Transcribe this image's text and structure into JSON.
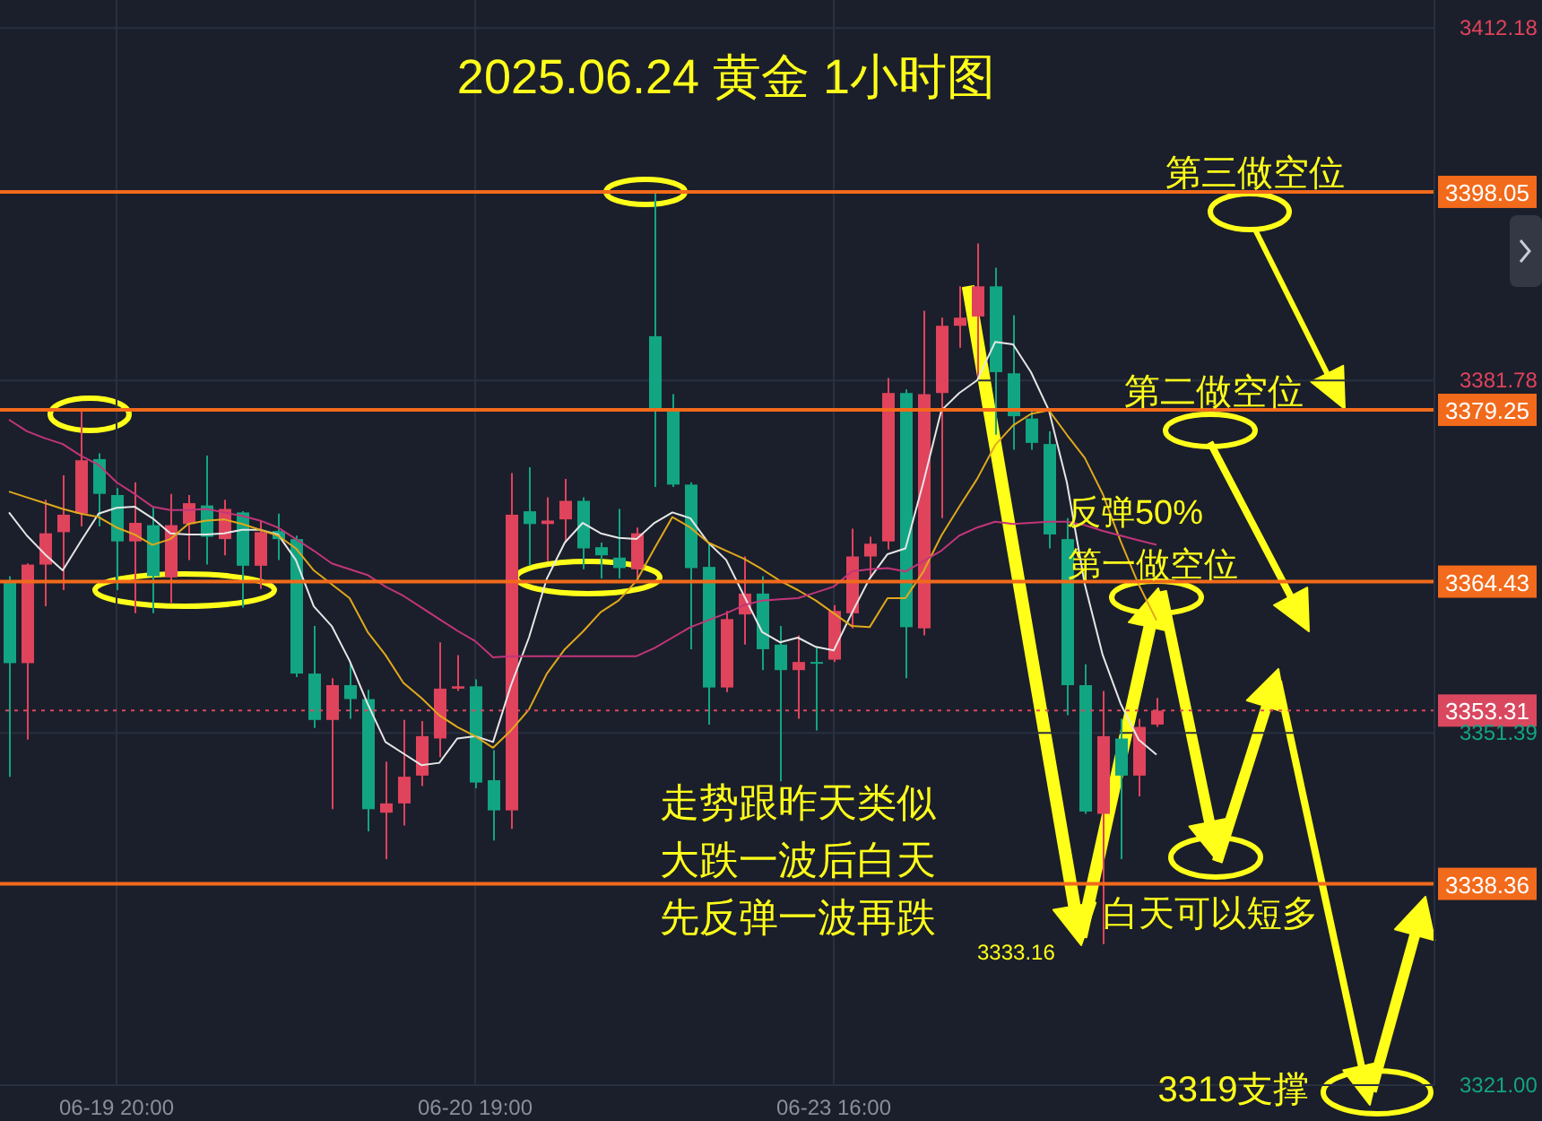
{
  "chart_data": {
    "type": "candlestick",
    "title": "2025.06.24 黄金 1小时图",
    "categories": [
      null,
      null,
      null,
      null,
      null,
      null,
      "06-19 20:00",
      null,
      null,
      null,
      null,
      null,
      null,
      null,
      null,
      null,
      null,
      null,
      null,
      null,
      null,
      null,
      null,
      null,
      null,
      null,
      "06-20 19:00",
      null,
      null,
      null,
      null,
      null,
      null,
      null,
      null,
      null,
      null,
      null,
      null,
      null,
      null,
      null,
      null,
      null,
      null,
      null,
      "06-23 16:00",
      null,
      null,
      null,
      null,
      null,
      null,
      null,
      null,
      null,
      null,
      null,
      null,
      null,
      null,
      null,
      null,
      null,
      null,
      null,
      null,
      null,
      null,
      null,
      null,
      null,
      null,
      null,
      null,
      null,
      null,
      null,
      null,
      null
    ],
    "ohlc": [
      [
        3364.5,
        3364.9,
        3347.6,
        3357.4
      ],
      [
        3357.4,
        3366.0,
        3350.8,
        3365.9
      ],
      [
        3365.9,
        3371.5,
        3362.3,
        3368.6
      ],
      [
        3368.7,
        3373.6,
        3363.7,
        3370.2
      ],
      [
        3370.3,
        3379.2,
        3369.2,
        3374.9
      ],
      [
        3375.0,
        3375.5,
        3369.2,
        3372.0
      ],
      [
        3371.9,
        3372.5,
        3363.7,
        3367.9
      ],
      [
        3367.9,
        3373.0,
        3361.7,
        3369.5
      ],
      [
        3369.3,
        3370.8,
        3361.7,
        3364.9
      ],
      [
        3364.8,
        3372.0,
        3362.6,
        3369.3
      ],
      [
        3369.4,
        3371.9,
        3366.3,
        3371.2
      ],
      [
        3371.0,
        3375.3,
        3365.9,
        3368.3
      ],
      [
        3368.1,
        3371.5,
        3366.7,
        3370.7
      ],
      [
        3370.4,
        3370.5,
        3362.2,
        3365.8
      ],
      [
        3365.8,
        3369.7,
        3363.8,
        3368.7
      ],
      [
        3368.8,
        3370.3,
        3366.3,
        3368.1
      ],
      [
        3368.1,
        3368.4,
        3356.2,
        3356.5
      ],
      [
        3356.5,
        3360.6,
        3351.8,
        3352.5
      ],
      [
        3352.5,
        3356.1,
        3344.8,
        3355.5
      ],
      [
        3355.5,
        3357.5,
        3352.6,
        3354.3
      ],
      [
        3354.3,
        3355.1,
        3342.9,
        3344.8
      ],
      [
        3344.5,
        3348.9,
        3340.5,
        3345.3
      ],
      [
        3345.3,
        3352.5,
        3343.4,
        3347.6
      ],
      [
        3347.7,
        3352.4,
        3346.8,
        3351.1
      ],
      [
        3350.9,
        3359.2,
        3349.3,
        3355.2
      ],
      [
        3355.2,
        3358.1,
        3355.0,
        3355.4
      ],
      [
        3355.4,
        3356.0,
        3346.6,
        3347.1
      ],
      [
        3347.3,
        3349.9,
        3342.1,
        3344.7
      ],
      [
        3344.7,
        3373.8,
        3343.1,
        3370.2
      ],
      [
        3370.5,
        3374.3,
        3365.8,
        3369.4
      ],
      [
        3369.4,
        3371.7,
        3366.2,
        3369.7
      ],
      [
        3369.8,
        3373.3,
        3367.8,
        3371.4
      ],
      [
        3371.4,
        3371.7,
        3365.5,
        3367.3
      ],
      [
        3367.4,
        3367.8,
        3364.7,
        3366.7
      ],
      [
        3366.5,
        3370.7,
        3364.7,
        3365.6
      ],
      [
        3365.5,
        3369.1,
        3364.7,
        3368.6
      ],
      [
        3385.6,
        3398.0,
        3372.6,
        3379.1
      ],
      [
        3379.1,
        3380.6,
        3372.6,
        3372.8
      ],
      [
        3372.8,
        3373.0,
        3358.6,
        3365.6
      ],
      [
        3365.7,
        3367.8,
        3352.1,
        3355.3
      ],
      [
        3355.3,
        3361.9,
        3354.9,
        3361.2
      ],
      [
        3361.6,
        3366.6,
        3359.0,
        3363.4
      ],
      [
        3363.4,
        3364.9,
        3356.8,
        3358.6
      ],
      [
        3359.0,
        3360.6,
        3347.2,
        3356.8
      ],
      [
        3356.8,
        3359.8,
        3352.6,
        3357.5
      ],
      [
        3357.5,
        3358.8,
        3351.6,
        3357.4
      ],
      [
        3357.7,
        3362.4,
        3357.5,
        3361.9
      ],
      [
        3361.7,
        3369.0,
        3360.4,
        3366.6
      ],
      [
        3366.6,
        3368.3,
        3364.7,
        3367.7
      ],
      [
        3367.9,
        3382.0,
        3367.2,
        3380.7
      ],
      [
        3380.7,
        3381.0,
        3356.1,
        3360.5
      ],
      [
        3360.4,
        3387.8,
        3359.8,
        3380.6
      ],
      [
        3380.7,
        3387.2,
        3369.9,
        3386.5
      ],
      [
        3386.5,
        3389.9,
        3384.6,
        3387.2
      ],
      [
        3387.3,
        3393.6,
        3382.0,
        3389.9
      ],
      [
        3389.9,
        3391.5,
        3377.1,
        3382.5
      ],
      [
        3382.4,
        3387.4,
        3375.8,
        3378.7
      ],
      [
        3378.5,
        3379.2,
        3375.8,
        3376.4
      ],
      [
        3376.3,
        3377.4,
        3367.3,
        3368.5
      ],
      [
        3368.1,
        3369.9,
        3352.9,
        3355.5
      ],
      [
        3355.5,
        3357.3,
        3344.4,
        3344.6
      ],
      [
        3344.4,
        3355.0,
        3333.16,
        3351.1
      ],
      [
        3350.9,
        3352.6,
        3340.5,
        3347.7
      ],
      [
        3347.7,
        3352.6,
        3345.9,
        3351.9
      ],
      [
        3352.1,
        3354.4,
        3351.9,
        3353.31
      ],
      null,
      null,
      null,
      null,
      null,
      null,
      null,
      null,
      null,
      null,
      null,
      null,
      null,
      null,
      null
    ],
    "series": [
      {
        "type": "line",
        "color": "#e6e6e6",
        "values": [
          3370.4,
          3368.4,
          3366.8,
          3365.4,
          3367.9,
          3370.3,
          3370.8,
          3370.9,
          3369.9,
          3368.6,
          3368.5,
          3368.5,
          3368.6,
          3368.9,
          3368.9,
          3368.5,
          3366.3,
          3362.3,
          3360.6,
          3357.6,
          3353.9,
          3350.6,
          3349.6,
          3348.6,
          3348.8,
          3350.9,
          3351.1,
          3350.6,
          3355.5,
          3359.6,
          3364.7,
          3367.8,
          3369.5,
          3368.6,
          3368.2,
          3368.1,
          3369.5,
          3370.4,
          3369.9,
          3367.8,
          3366.3,
          3363.2,
          3360.1,
          3359.2,
          3359.6,
          3358.8,
          3358.5,
          3361.7,
          3364.7,
          3366.8,
          3367.3,
          3373.0,
          3379.2,
          3380.7,
          3381.8,
          3385.1,
          3384.9,
          3382.5,
          3379.2,
          3373.0,
          3364.2,
          3358.1,
          3353.9,
          3350.8,
          3349.5,
          null,
          null,
          null,
          null,
          null,
          null,
          null,
          null,
          null,
          null,
          null,
          null,
          null,
          null,
          null
        ]
      },
      {
        "type": "line",
        "color": "#e0a81c",
        "values": [
          3372.2,
          3371.7,
          3371.2,
          3370.7,
          3370.3,
          3370.0,
          3369.1,
          3368.5,
          3367.6,
          3368.1,
          3369.4,
          3369.7,
          3369.8,
          3369.4,
          3368.9,
          3368.4,
          3367.3,
          3365.4,
          3364.2,
          3363.0,
          3360.1,
          3358.1,
          3355.7,
          3354.4,
          3352.9,
          3351.9,
          3351.1,
          3350.1,
          3351.6,
          3353.4,
          3356.5,
          3358.6,
          3360.1,
          3361.8,
          3362.8,
          3364.5,
          3367.3,
          3370.0,
          3369.1,
          3367.8,
          3367.1,
          3366.4,
          3365.5,
          3364.5,
          3363.7,
          3362.8,
          3361.7,
          3360.6,
          3360.5,
          3363.0,
          3363.0,
          3365.3,
          3368.4,
          3370.9,
          3373.3,
          3376.2,
          3377.9,
          3378.9,
          3379.2,
          3377.1,
          3375.1,
          3372.0,
          3367.9,
          3364.2,
          3361.1,
          null,
          null,
          null,
          null,
          null,
          null,
          null,
          null,
          null,
          null,
          null,
          null,
          null,
          null,
          null
        ]
      },
      {
        "type": "line",
        "color": "#c2357a",
        "values": [
          3378.4,
          3377.4,
          3376.8,
          3376.3,
          3375.3,
          3374.5,
          3373.0,
          3372.0,
          3370.9,
          3370.6,
          3370.6,
          3370.7,
          3370.4,
          3370.1,
          3369.7,
          3369.1,
          3368.1,
          3367.1,
          3366.0,
          3365.5,
          3365.0,
          3364.0,
          3363.2,
          3362.2,
          3361.2,
          3360.2,
          3359.3,
          3357.9,
          3358.0,
          3358.0,
          3358.0,
          3358.0,
          3358.0,
          3358.0,
          3358.0,
          3358.0,
          3358.7,
          3359.6,
          3360.5,
          3361.1,
          3361.7,
          3362.4,
          3362.8,
          3362.9,
          3363.0,
          3363.5,
          3364.0,
          3365.3,
          3365.5,
          3365.6,
          3365.3,
          3366.2,
          3367.1,
          3368.4,
          3369.1,
          3369.6,
          3369.4,
          3369.5,
          3369.6,
          3369.6,
          3369.3,
          3368.8,
          3368.4,
          3368.0,
          3367.6,
          null,
          null,
          null,
          null,
          null,
          null,
          null,
          null,
          null,
          null,
          null,
          null,
          null,
          null,
          null
        ]
      }
    ],
    "ylim": [
      3321,
      3414.6
    ],
    "yticks": [
      3412.18,
      3381.78,
      3351.39,
      {
        "value": 3321,
        "label": "3321.00"
      }
    ],
    "grid": true,
    "ref_lines": [
      {
        "axis": "y",
        "value": 3398.05,
        "label": "3398.05",
        "color": "#f26a1b"
      },
      {
        "axis": "y",
        "value": 3379.25,
        "label": "3379.25",
        "color": "#f26a1b"
      },
      {
        "axis": "y",
        "value": 3364.43,
        "label": "3364.43",
        "color": "#f26a1b"
      },
      {
        "axis": "y",
        "value": 3353.31,
        "label": "3353.31",
        "color": "#d9485f",
        "line_style": "dotted"
      },
      {
        "axis": "y",
        "value": 3338.36,
        "label": "3338.36",
        "color": "#f26a1b"
      }
    ],
    "annotations": [
      "第三做空位",
      "第二做空位",
      "反弹50%",
      "第一做空位",
      "走势跟昨天类似",
      "大跌一波后白天",
      "先反弹一波再跌",
      "白天可以短多",
      "3319支撑",
      "3333.16"
    ]
  }
}
